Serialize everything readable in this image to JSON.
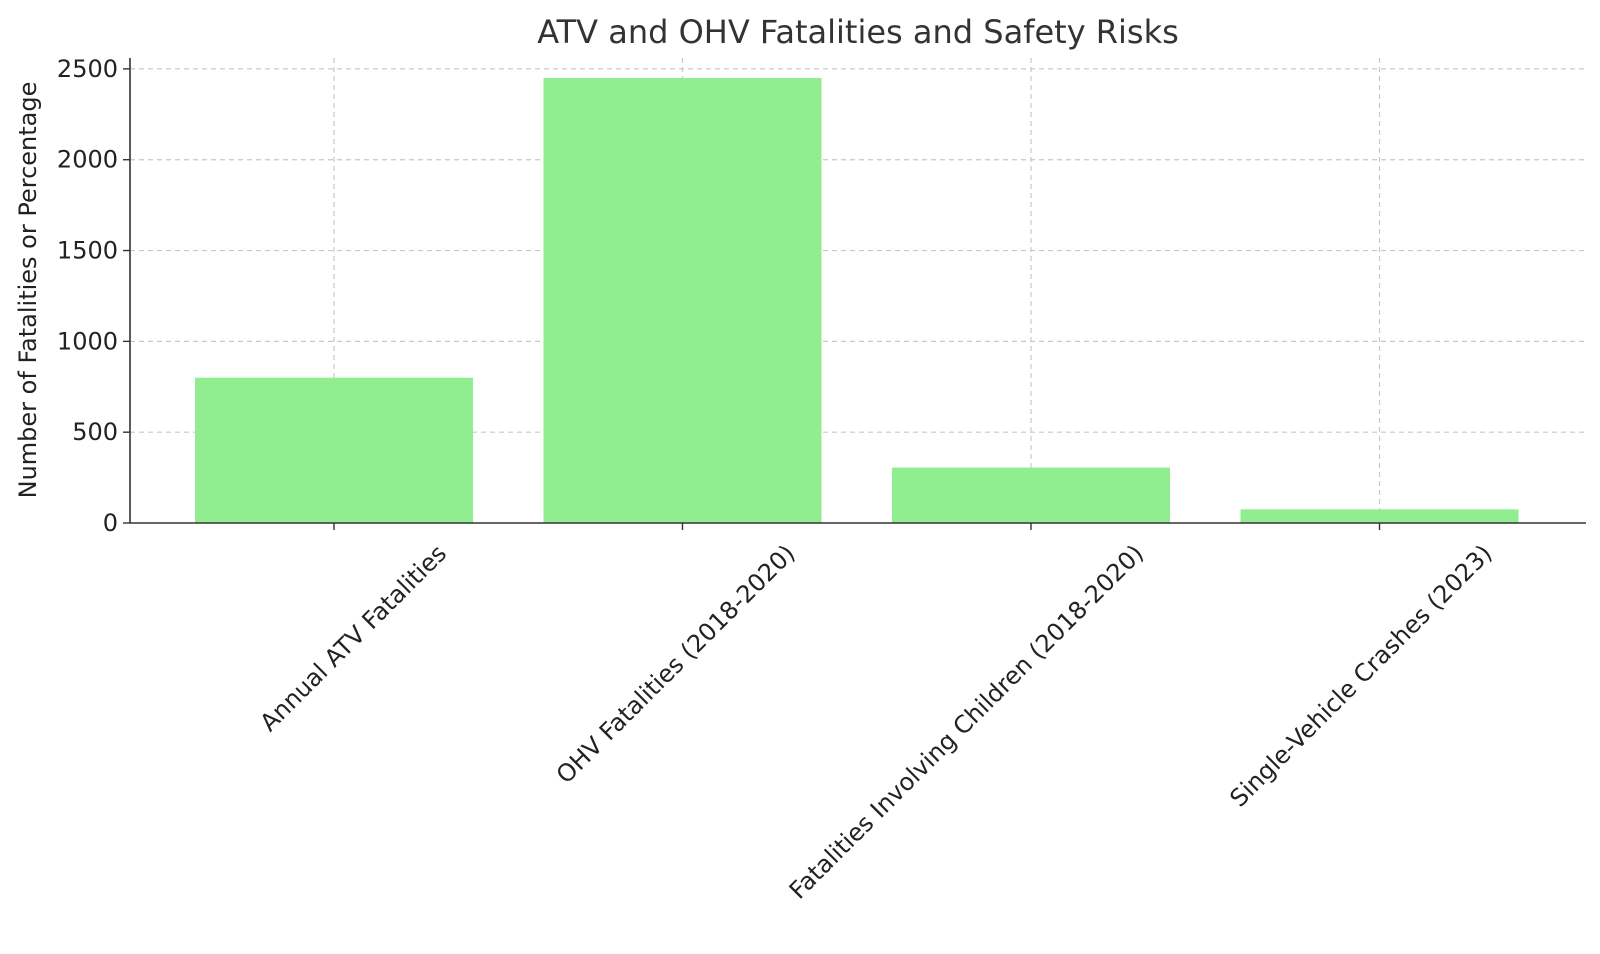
{
  "chart_data": {
    "type": "bar",
    "title": "ATV and OHV Fatalities and Safety Risks",
    "xlabel": "",
    "ylabel": "Number of Fatalities or Percentage",
    "categories": [
      "Annual ATV Fatalities",
      "OHV Fatalities (2018-2020)",
      "Fatalities Involving Children (2018-2020)",
      "Single-Vehicle Crashes (2023)"
    ],
    "values": [
      800,
      2450,
      305,
      75
    ],
    "ylim": [
      0,
      2560
    ],
    "yticks": [
      0,
      500,
      1000,
      1500,
      2000,
      2500
    ],
    "grid": true,
    "bar_color": "#90ee90"
  }
}
